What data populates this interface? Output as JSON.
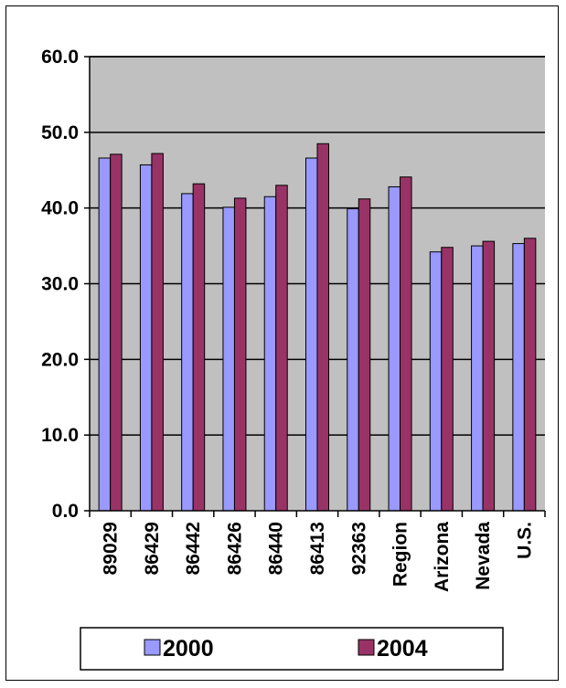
{
  "chart_data": {
    "type": "bar",
    "categories": [
      "89029",
      "86429",
      "86442",
      "86426",
      "86440",
      "86413",
      "92363",
      "Region",
      "Arizona",
      "Nevada",
      "U.S."
    ],
    "series": [
      {
        "name": "2000",
        "values": [
          46.6,
          45.7,
          41.9,
          40.1,
          41.5,
          46.6,
          39.9,
          42.8,
          34.2,
          35.0,
          35.3
        ],
        "color": "#9999ff"
      },
      {
        "name": "2004",
        "values": [
          47.1,
          47.2,
          43.2,
          41.3,
          43.0,
          48.5,
          41.2,
          44.1,
          34.8,
          35.6,
          36.0
        ],
        "color": "#993366"
      }
    ],
    "yticks": [
      "0.0",
      "10.0",
      "20.0",
      "30.0",
      "40.0",
      "50.0",
      "60.0"
    ],
    "ylim": [
      0,
      60
    ],
    "plot_background": "#c0c0c0",
    "grid": true,
    "legend_position": "bottom"
  }
}
